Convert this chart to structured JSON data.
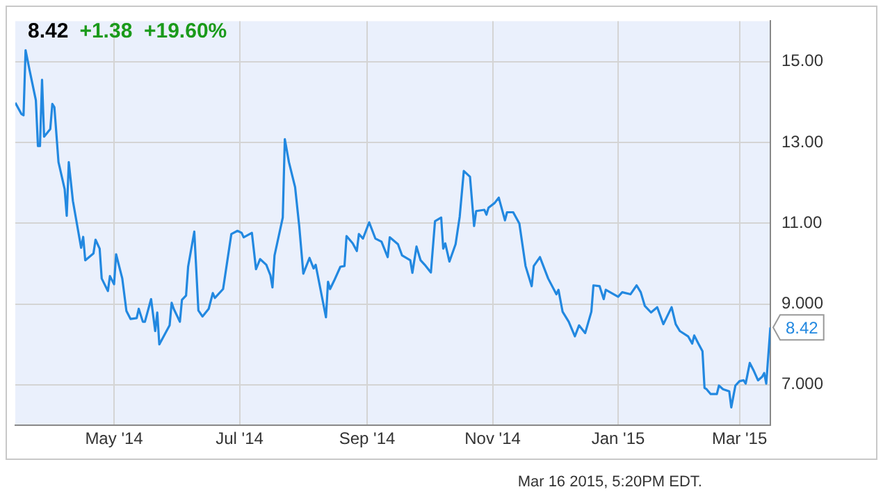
{
  "chart_data": {
    "type": "line",
    "title": "8.42",
    "subtitle": "+1.38  +19.60%",
    "annotations": [
      {
        "text": "8.42",
        "x": "2015-03-16",
        "y": 8.42
      },
      "Mar 16 2015, 5:20PM EDT."
    ],
    "x": [
      "2014-03-14",
      "2014-03-17",
      "2014-03-18",
      "2014-03-19",
      "2014-03-21",
      "2014-03-24",
      "2014-03-25",
      "2014-03-26",
      "2014-03-27",
      "2014-03-28",
      "2014-03-31",
      "2014-04-01",
      "2014-04-02",
      "2014-04-04",
      "2014-04-07",
      "2014-04-08",
      "2014-04-09",
      "2014-04-11",
      "2014-04-15",
      "2014-04-16",
      "2014-04-17",
      "2014-04-21",
      "2014-04-22",
      "2014-04-24",
      "2014-04-25",
      "2014-04-28",
      "2014-04-29",
      "2014-05-01",
      "2014-05-02",
      "2014-05-05",
      "2014-05-07",
      "2014-05-09",
      "2014-05-12",
      "2014-05-13",
      "2014-05-15",
      "2014-05-16",
      "2014-05-19",
      "2014-05-21",
      "2014-05-22",
      "2014-05-23",
      "2014-05-28",
      "2014-05-29",
      "2014-05-30",
      "2014-06-02",
      "2014-06-03",
      "2014-06-05",
      "2014-06-06",
      "2014-06-09",
      "2014-06-11",
      "2014-06-13",
      "2014-06-16",
      "2014-06-18",
      "2014-06-19",
      "2014-06-23",
      "2014-06-27",
      "2014-06-30",
      "2014-07-02",
      "2014-07-03",
      "2014-07-07",
      "2014-07-09",
      "2014-07-11",
      "2014-07-14",
      "2014-07-16",
      "2014-07-17",
      "2014-07-18",
      "2014-07-22",
      "2014-07-23",
      "2014-07-25",
      "2014-07-28",
      "2014-07-30",
      "2014-08-01",
      "2014-08-04",
      "2014-08-06",
      "2014-08-07",
      "2014-08-08",
      "2014-08-12",
      "2014-08-13",
      "2014-08-14",
      "2014-08-16",
      "2014-08-19",
      "2014-08-21",
      "2014-08-22",
      "2014-08-25",
      "2014-08-27",
      "2014-08-28",
      "2014-08-30",
      "2014-09-02",
      "2014-09-05",
      "2014-09-08",
      "2014-09-11",
      "2014-09-12",
      "2014-09-16",
      "2014-09-18",
      "2014-09-22",
      "2014-09-23",
      "2014-09-25",
      "2014-09-27",
      "2014-09-29",
      "2014-10-02",
      "2014-10-04",
      "2014-10-07",
      "2014-10-08",
      "2014-10-09",
      "2014-10-11",
      "2014-10-14",
      "2014-10-16",
      "2014-10-18",
      "2014-10-21",
      "2014-10-23",
      "2014-10-24",
      "2014-10-28",
      "2014-10-29",
      "2014-10-30",
      "2014-11-02",
      "2014-11-04",
      "2014-11-07",
      "2014-11-08",
      "2014-11-11",
      "2014-11-14",
      "2014-11-17",
      "2014-11-20",
      "2014-11-21",
      "2014-11-24",
      "2014-11-28",
      "2014-12-02",
      "2014-12-03",
      "2014-12-05",
      "2014-12-08",
      "2014-12-11",
      "2014-12-13",
      "2014-12-16",
      "2014-12-19",
      "2014-12-20",
      "2014-12-23",
      "2014-12-25",
      "2014-12-26",
      "2015-01-01",
      "2015-01-03",
      "2015-01-07",
      "2015-01-10",
      "2015-01-12",
      "2015-01-14",
      "2015-01-17",
      "2015-01-20",
      "2015-01-23",
      "2015-01-27",
      "2015-01-29",
      "2015-01-31",
      "2015-02-04",
      "2015-02-06",
      "2015-02-07",
      "2015-02-09",
      "2015-02-11",
      "2015-02-12",
      "2015-02-13",
      "2015-02-15",
      "2015-02-18",
      "2015-02-19",
      "2015-02-21",
      "2015-02-24",
      "2015-02-25",
      "2015-02-27",
      "2015-03-01",
      "2015-03-03",
      "2015-03-04",
      "2015-03-06",
      "2015-03-08",
      "2015-03-10",
      "2015-03-12",
      "2015-03-13",
      "2015-03-14",
      "2015-03-16"
    ],
    "values": [
      13.98,
      13.7,
      13.67,
      15.28,
      14.77,
      14.04,
      12.91,
      12.91,
      14.55,
      13.14,
      13.33,
      13.95,
      13.87,
      12.51,
      11.84,
      11.18,
      12.51,
      11.55,
      10.39,
      10.66,
      10.08,
      10.25,
      10.59,
      10.37,
      9.63,
      9.32,
      9.69,
      9.49,
      10.23,
      9.63,
      8.83,
      8.63,
      8.65,
      8.88,
      8.56,
      8.56,
      9.12,
      8.33,
      8.79,
      8.0,
      8.47,
      9.03,
      8.88,
      8.56,
      9.1,
      9.21,
      9.92,
      10.79,
      8.84,
      8.69,
      8.88,
      9.27,
      9.15,
      9.37,
      10.73,
      10.81,
      10.76,
      10.65,
      10.76,
      9.86,
      10.11,
      9.97,
      9.71,
      9.41,
      10.2,
      11.14,
      13.08,
      12.51,
      11.89,
      10.93,
      9.75,
      10.14,
      9.88,
      9.97,
      9.71,
      8.67,
      9.55,
      9.37,
      9.58,
      9.92,
      9.94,
      10.68,
      10.5,
      10.31,
      10.73,
      10.62,
      11.02,
      10.62,
      10.54,
      10.16,
      10.65,
      10.48,
      10.2,
      10.08,
      9.77,
      10.42,
      10.08,
      9.97,
      9.78,
      11.05,
      11.14,
      10.37,
      10.5,
      10.05,
      10.48,
      11.16,
      12.29,
      12.15,
      10.93,
      11.3,
      11.33,
      11.21,
      11.38,
      11.5,
      11.63,
      11.07,
      11.27,
      11.27,
      10.99,
      9.94,
      9.44,
      9.94,
      10.16,
      9.63,
      9.24,
      9.35,
      8.81,
      8.56,
      8.2,
      8.47,
      8.28,
      8.81,
      9.46,
      9.44,
      9.12,
      9.35,
      9.18,
      9.29,
      9.24,
      9.46,
      9.29,
      8.95,
      8.79,
      8.92,
      8.5,
      8.92,
      8.5,
      8.33,
      8.2,
      8.02,
      8.22,
      8.02,
      7.83,
      6.92,
      6.89,
      6.77,
      6.77,
      6.98,
      6.89,
      6.84,
      6.44,
      6.98,
      7.09,
      7.11,
      7.03,
      7.54,
      7.34,
      7.11,
      7.2,
      7.29,
      7.03,
      8.42
    ],
    "color": "#2288e0",
    "marker": "none",
    "line_style": "solid",
    "grid": true,
    "xlim": [
      "2014-03-14",
      "2015-03-16"
    ],
    "xticks": [
      {
        "value": "2014-05-01",
        "label": "May '14"
      },
      {
        "value": "2014-07-01",
        "label": "Jul '14"
      },
      {
        "value": "2014-09-01",
        "label": "Sep '14"
      },
      {
        "value": "2014-11-01",
        "label": "Nov '14"
      },
      {
        "value": "2015-01-01",
        "label": "Jan '15"
      },
      {
        "value": "2015-03-01",
        "label": "Mar '15"
      }
    ],
    "ylim": [
      6,
      16
    ],
    "yticks": [
      {
        "value": 7,
        "label": "7.000"
      },
      {
        "value": 9,
        "label": "9.000"
      },
      {
        "value": 11,
        "label": "11.00"
      },
      {
        "value": 13,
        "label": "13.00"
      },
      {
        "value": 15,
        "label": "15.00"
      }
    ]
  }
}
